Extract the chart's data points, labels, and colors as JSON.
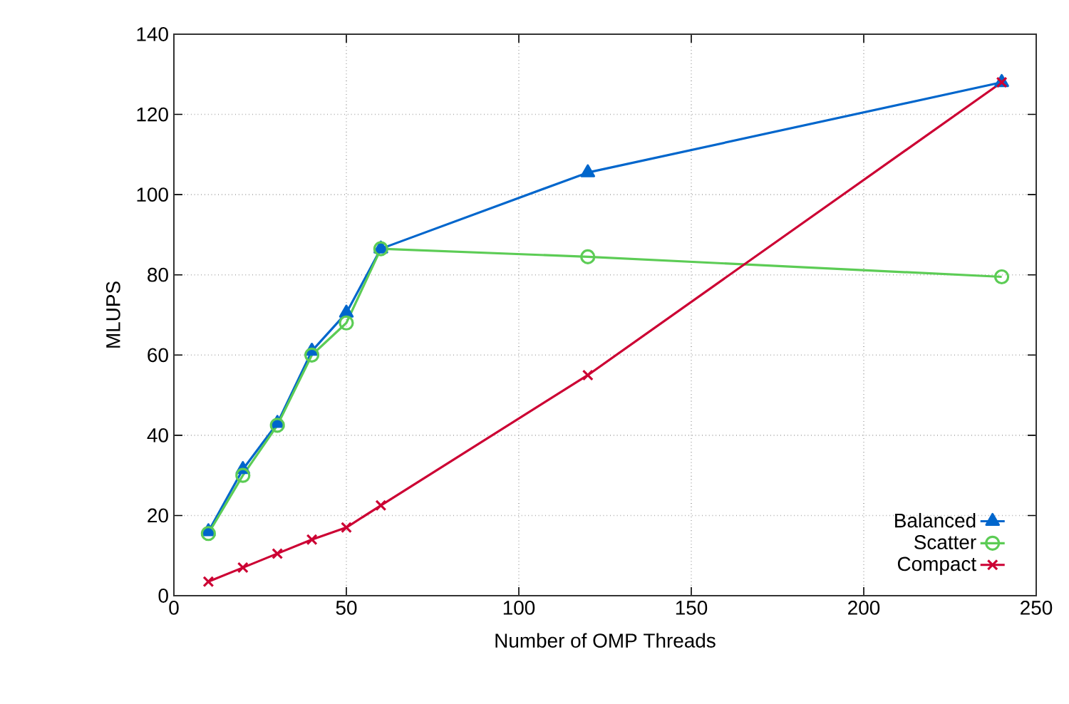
{
  "chart_data": {
    "type": "line",
    "xlabel": "Number of OMP Threads",
    "ylabel": "MLUPS",
    "x": [
      10,
      20,
      30,
      40,
      50,
      60,
      120,
      240
    ],
    "series": [
      {
        "name": "Balanced",
        "color": "#0066cc",
        "marker": "triangle",
        "values": [
          16,
          31.5,
          43,
          61,
          70.5,
          86.5,
          105.5,
          128
        ]
      },
      {
        "name": "Scatter",
        "color": "#5ccc55",
        "marker": "circle",
        "values": [
          15.5,
          30,
          42.5,
          60,
          68,
          86.5,
          84.5,
          79.5
        ]
      },
      {
        "name": "Compact",
        "color": "#cc0033",
        "marker": "cross",
        "values": [
          3.5,
          7,
          10.5,
          14,
          17,
          22.5,
          55,
          128
        ]
      }
    ],
    "xlim": [
      0,
      250
    ],
    "xticks": [
      0,
      50,
      100,
      150,
      200,
      250
    ],
    "ylim": [
      0,
      140
    ],
    "yticks": [
      0,
      20,
      40,
      60,
      80,
      100,
      120,
      140
    ],
    "grid": true,
    "legend": "bottom right",
    "line_style": "solid"
  }
}
